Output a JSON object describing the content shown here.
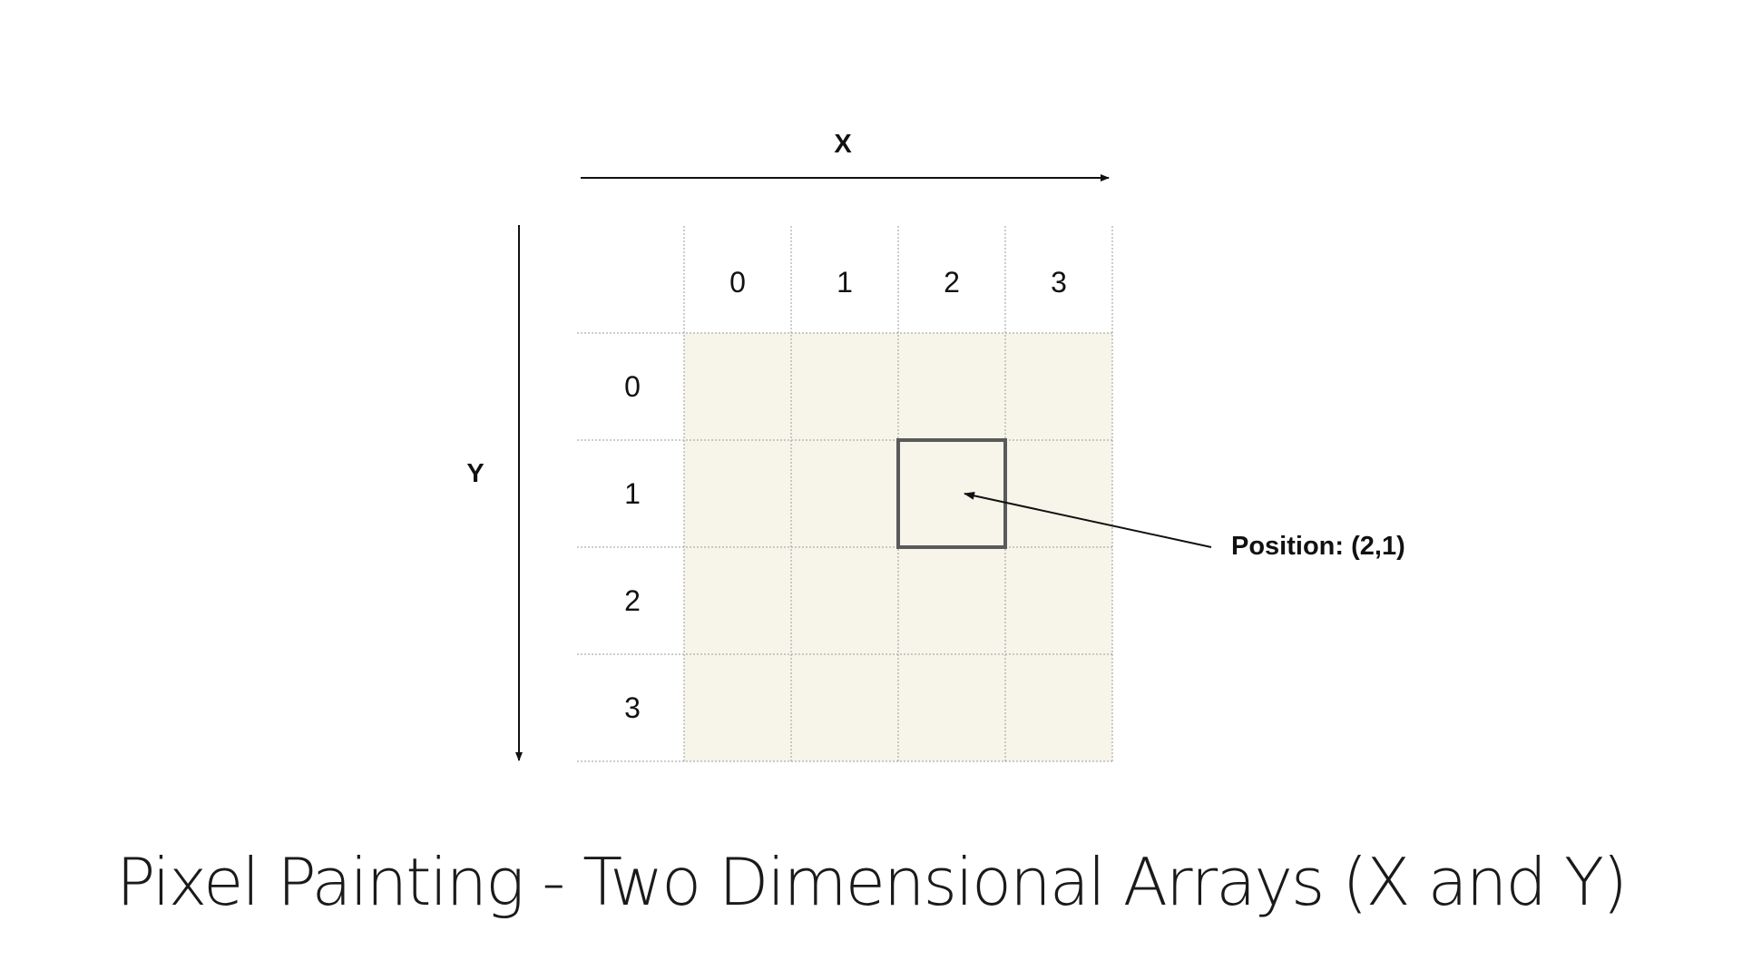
{
  "axes": {
    "x_label": "X",
    "y_label": "Y"
  },
  "grid": {
    "columns": [
      "0",
      "1",
      "2",
      "3"
    ],
    "rows": [
      "0",
      "1",
      "2",
      "3"
    ],
    "cell_fill": "#f7f5ea",
    "grid_line_color": "#9a9a9a"
  },
  "highlight": {
    "column_index": 2,
    "row_index": 1,
    "label": "Position: (2,1)",
    "border_color": "#5a5a5a"
  },
  "title": "Pixel Painting - Two Dimensional Arrays (X and Y)"
}
